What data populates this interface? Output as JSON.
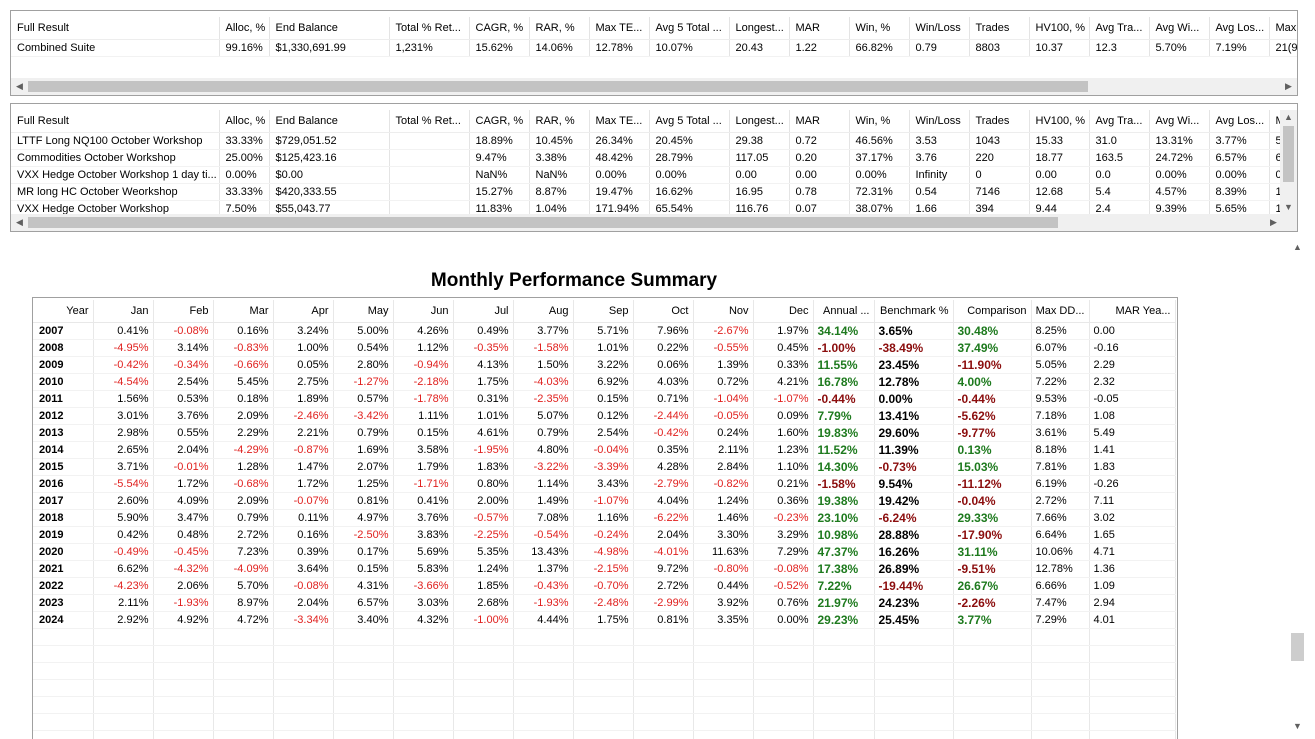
{
  "summary_grid": {
    "columns": [
      "Full Result",
      "Alloc, %",
      "End Balance",
      "Total % Ret...",
      "CAGR, %",
      "RAR, %",
      "Max TE...",
      "Avg 5 Total ...",
      "Longest...",
      "MAR",
      "Win, %",
      "Win/Loss",
      "Trades",
      "HV100, %",
      "Avg Tra...",
      "Avg Wi...",
      "Avg Los...",
      "Max"
    ],
    "rows": [
      [
        "Combined Suite",
        "99.16%",
        "$1,330,691.99",
        "1,231%",
        "15.62%",
        "14.06%",
        "12.78%",
        "10.07%",
        "20.43",
        "1.22",
        "66.82%",
        "0.79",
        "8803",
        "10.37",
        "12.3",
        "5.70%",
        "7.19%",
        "21(9"
      ]
    ]
  },
  "systems_grid": {
    "columns": [
      "Full Result",
      "Alloc, %",
      "End Balance",
      "Total % Ret...",
      "CAGR, %",
      "RAR, %",
      "Max TE...",
      "Avg 5 Total ...",
      "Longest...",
      "MAR",
      "Win, %",
      "Win/Loss",
      "Trades",
      "HV100, %",
      "Avg Tra...",
      "Avg Wi...",
      "Avg Los...",
      "Ma"
    ],
    "rows": [
      [
        "LTTF Long NQ100 October Workshop",
        "33.33%",
        "$729,051.52",
        "",
        "18.89%",
        "10.45%",
        "26.34%",
        "20.45%",
        "29.38",
        "0.72",
        "46.56%",
        "3.53",
        "1043",
        "15.33",
        "31.0",
        "13.31%",
        "3.77%",
        "5"
      ],
      [
        "Commodities October Workshop",
        "25.00%",
        "$125,423.16",
        "",
        "9.47%",
        "3.38%",
        "48.42%",
        "28.79%",
        "117.05",
        "0.20",
        "37.17%",
        "3.76",
        "220",
        "18.77",
        "163.5",
        "24.72%",
        "6.57%",
        "6"
      ],
      [
        "VXX Hedge October Workshop 1 day ti...",
        "0.00%",
        "$0.00",
        "",
        "NaN%",
        "NaN%",
        "0.00%",
        "0.00%",
        "0.00",
        "0.00",
        "0.00%",
        "Infinity",
        "0",
        "0.00",
        "0.0",
        "0.00%",
        "0.00%",
        "0"
      ],
      [
        "MR long HC October Weorkshop",
        "33.33%",
        "$420,333.55",
        "",
        "15.27%",
        "8.87%",
        "19.47%",
        "16.62%",
        "16.95",
        "0.78",
        "72.31%",
        "0.54",
        "7146",
        "12.68",
        "5.4",
        "4.57%",
        "8.39%",
        "1"
      ],
      [
        "VXX Hedge October Workshop",
        "7.50%",
        "$55,043.77",
        "",
        "11.83%",
        "1.04%",
        "171.94%",
        "65.54%",
        "116.76",
        "0.07",
        "38.07%",
        "1.66",
        "394",
        "9.44",
        "2.4",
        "9.39%",
        "5.65%",
        "1"
      ]
    ]
  },
  "monthly": {
    "title": "Monthly Performance Summary",
    "columns": [
      "Year",
      "Jan",
      "Feb",
      "Mar",
      "Apr",
      "May",
      "Jun",
      "Jul",
      "Aug",
      "Sep",
      "Oct",
      "Nov",
      "Dec",
      "Annual ...",
      "Benchmark %",
      "Comparison",
      "Max DD...",
      "MAR Yea..."
    ],
    "rows": [
      [
        "2007",
        "0.41%",
        "-0.08%",
        "0.16%",
        "3.24%",
        "5.00%",
        "4.26%",
        "0.49%",
        "3.77%",
        "5.71%",
        "7.96%",
        "-2.67%",
        "1.97%",
        "34.14%",
        "3.65%",
        "30.48%",
        "8.25%",
        "0.00"
      ],
      [
        "2008",
        "-4.95%",
        "3.14%",
        "-0.83%",
        "1.00%",
        "0.54%",
        "1.12%",
        "-0.35%",
        "-1.58%",
        "1.01%",
        "0.22%",
        "-0.55%",
        "0.45%",
        "-1.00%",
        "-38.49%",
        "37.49%",
        "6.07%",
        "-0.16"
      ],
      [
        "2009",
        "-0.42%",
        "-0.34%",
        "-0.66%",
        "0.05%",
        "2.80%",
        "-0.94%",
        "4.13%",
        "1.50%",
        "3.22%",
        "0.06%",
        "1.39%",
        "0.33%",
        "11.55%",
        "23.45%",
        "-11.90%",
        "5.05%",
        "2.29"
      ],
      [
        "2010",
        "-4.54%",
        "2.54%",
        "5.45%",
        "2.75%",
        "-1.27%",
        "-2.18%",
        "1.75%",
        "-4.03%",
        "6.92%",
        "4.03%",
        "0.72%",
        "4.21%",
        "16.78%",
        "12.78%",
        "4.00%",
        "7.22%",
        "2.32"
      ],
      [
        "2011",
        "1.56%",
        "0.53%",
        "0.18%",
        "1.89%",
        "0.57%",
        "-1.78%",
        "0.31%",
        "-2.35%",
        "0.15%",
        "0.71%",
        "-1.04%",
        "-1.07%",
        "-0.44%",
        "0.00%",
        "-0.44%",
        "9.53%",
        "-0.05"
      ],
      [
        "2012",
        "3.01%",
        "3.76%",
        "2.09%",
        "-2.46%",
        "-3.42%",
        "1.11%",
        "1.01%",
        "5.07%",
        "0.12%",
        "-2.44%",
        "-0.05%",
        "0.09%",
        "7.79%",
        "13.41%",
        "-5.62%",
        "7.18%",
        "1.08"
      ],
      [
        "2013",
        "2.98%",
        "0.55%",
        "2.29%",
        "2.21%",
        "0.79%",
        "0.15%",
        "4.61%",
        "0.79%",
        "2.54%",
        "-0.42%",
        "0.24%",
        "1.60%",
        "19.83%",
        "29.60%",
        "-9.77%",
        "3.61%",
        "5.49"
      ],
      [
        "2014",
        "2.65%",
        "2.04%",
        "-4.29%",
        "-0.87%",
        "1.69%",
        "3.58%",
        "-1.95%",
        "4.80%",
        "-0.04%",
        "0.35%",
        "2.11%",
        "1.23%",
        "11.52%",
        "11.39%",
        "0.13%",
        "8.18%",
        "1.41"
      ],
      [
        "2015",
        "3.71%",
        "-0.01%",
        "1.28%",
        "1.47%",
        "2.07%",
        "1.79%",
        "1.83%",
        "-3.22%",
        "-3.39%",
        "4.28%",
        "2.84%",
        "1.10%",
        "14.30%",
        "-0.73%",
        "15.03%",
        "7.81%",
        "1.83"
      ],
      [
        "2016",
        "-5.54%",
        "1.72%",
        "-0.68%",
        "1.72%",
        "1.25%",
        "-1.71%",
        "0.80%",
        "1.14%",
        "3.43%",
        "-2.79%",
        "-0.82%",
        "0.21%",
        "-1.58%",
        "9.54%",
        "-11.12%",
        "6.19%",
        "-0.26"
      ],
      [
        "2017",
        "2.60%",
        "4.09%",
        "2.09%",
        "-0.07%",
        "0.81%",
        "0.41%",
        "2.00%",
        "1.49%",
        "-1.07%",
        "4.04%",
        "1.24%",
        "0.36%",
        "19.38%",
        "19.42%",
        "-0.04%",
        "2.72%",
        "7.11"
      ],
      [
        "2018",
        "5.90%",
        "3.47%",
        "0.79%",
        "0.11%",
        "4.97%",
        "3.76%",
        "-0.57%",
        "7.08%",
        "1.16%",
        "-6.22%",
        "1.46%",
        "-0.23%",
        "23.10%",
        "-6.24%",
        "29.33%",
        "7.66%",
        "3.02"
      ],
      [
        "2019",
        "0.42%",
        "0.48%",
        "2.72%",
        "0.16%",
        "-2.50%",
        "3.83%",
        "-2.25%",
        "-0.54%",
        "-0.24%",
        "2.04%",
        "3.30%",
        "3.29%",
        "10.98%",
        "28.88%",
        "-17.90%",
        "6.64%",
        "1.65"
      ],
      [
        "2020",
        "-0.49%",
        "-0.45%",
        "7.23%",
        "0.39%",
        "0.17%",
        "5.69%",
        "5.35%",
        "13.43%",
        "-4.98%",
        "-4.01%",
        "11.63%",
        "7.29%",
        "47.37%",
        "16.26%",
        "31.11%",
        "10.06%",
        "4.71"
      ],
      [
        "2021",
        "6.62%",
        "-4.32%",
        "-4.09%",
        "3.64%",
        "0.15%",
        "5.83%",
        "1.24%",
        "1.37%",
        "-2.15%",
        "9.72%",
        "-0.80%",
        "-0.08%",
        "17.38%",
        "26.89%",
        "-9.51%",
        "12.78%",
        "1.36"
      ],
      [
        "2022",
        "-4.23%",
        "2.06%",
        "5.70%",
        "-0.08%",
        "4.31%",
        "-3.66%",
        "1.85%",
        "-0.43%",
        "-0.70%",
        "2.72%",
        "0.44%",
        "-0.52%",
        "7.22%",
        "-19.44%",
        "26.67%",
        "6.66%",
        "1.09"
      ],
      [
        "2023",
        "2.11%",
        "-1.93%",
        "8.97%",
        "2.04%",
        "6.57%",
        "3.03%",
        "2.68%",
        "-1.93%",
        "-2.48%",
        "-2.99%",
        "3.92%",
        "0.76%",
        "21.97%",
        "24.23%",
        "-2.26%",
        "7.47%",
        "2.94"
      ],
      [
        "2024",
        "2.92%",
        "4.92%",
        "4.72%",
        "-3.34%",
        "3.40%",
        "4.32%",
        "-1.00%",
        "4.44%",
        "1.75%",
        "0.81%",
        "3.35%",
        "0.00%",
        "29.23%",
        "25.45%",
        "3.77%",
        "7.29%",
        "4.01"
      ]
    ]
  },
  "colors": {
    "negative": "#e0201e",
    "bold_positive": "#1e7a1e",
    "bold_negative": "#8b0d0d"
  },
  "icons": [
    "scroll-left-icon",
    "scroll-right-icon",
    "scroll-up-icon",
    "scroll-down-icon"
  ]
}
